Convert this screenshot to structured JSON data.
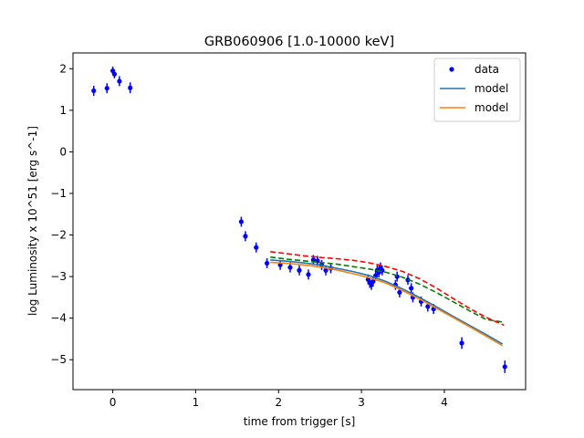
{
  "chart_data": {
    "type": "scatter",
    "title": "GRB060906 [1.0-10000 keV]",
    "xlabel": "time from trigger [s]",
    "ylabel": "log Luminosity x 10^51 [erg s^-1]",
    "xlim": [
      -0.48,
      4.98
    ],
    "ylim": [
      -5.72,
      2.38
    ],
    "xticks": [
      0,
      1,
      2,
      3,
      4
    ],
    "yticks": [
      -5,
      -4,
      -3,
      -2,
      -1,
      0,
      1,
      2
    ],
    "grid": false,
    "legend_position": "top-right",
    "series": [
      {
        "name": "data",
        "kind": "errorbar",
        "color": "#0000ff",
        "points": [
          {
            "x": -0.23,
            "y": 1.47,
            "err": 0.12
          },
          {
            "x": -0.07,
            "y": 1.53,
            "err": 0.12
          },
          {
            "x": 0.0,
            "y": 1.95,
            "err": 0.1
          },
          {
            "x": 0.02,
            "y": 1.87,
            "err": 0.1
          },
          {
            "x": 0.08,
            "y": 1.7,
            "err": 0.12
          },
          {
            "x": 0.21,
            "y": 1.54,
            "err": 0.13
          },
          {
            "x": 1.55,
            "y": -1.68,
            "err": 0.12
          },
          {
            "x": 1.6,
            "y": -2.03,
            "err": 0.12
          },
          {
            "x": 1.73,
            "y": -2.3,
            "err": 0.12
          },
          {
            "x": 1.86,
            "y": -2.68,
            "err": 0.12
          },
          {
            "x": 2.02,
            "y": -2.72,
            "err": 0.12
          },
          {
            "x": 2.14,
            "y": -2.78,
            "err": 0.12
          },
          {
            "x": 2.25,
            "y": -2.85,
            "err": 0.12
          },
          {
            "x": 2.36,
            "y": -2.95,
            "err": 0.12
          },
          {
            "x": 2.42,
            "y": -2.6,
            "err": 0.12
          },
          {
            "x": 2.47,
            "y": -2.62,
            "err": 0.12
          },
          {
            "x": 2.52,
            "y": -2.72,
            "err": 0.12
          },
          {
            "x": 2.57,
            "y": -2.85,
            "err": 0.12
          },
          {
            "x": 2.63,
            "y": -2.8,
            "err": 0.12
          },
          {
            "x": 3.08,
            "y": -3.07,
            "err": 0.12
          },
          {
            "x": 3.1,
            "y": -3.15,
            "err": 0.12
          },
          {
            "x": 3.12,
            "y": -3.2,
            "err": 0.12
          },
          {
            "x": 3.14,
            "y": -3.12,
            "err": 0.12
          },
          {
            "x": 3.17,
            "y": -2.98,
            "err": 0.12
          },
          {
            "x": 3.19,
            "y": -2.85,
            "err": 0.12
          },
          {
            "x": 3.21,
            "y": -2.9,
            "err": 0.12
          },
          {
            "x": 3.23,
            "y": -2.78,
            "err": 0.12
          },
          {
            "x": 3.25,
            "y": -2.85,
            "err": 0.12
          },
          {
            "x": 3.41,
            "y": -3.2,
            "err": 0.12
          },
          {
            "x": 3.43,
            "y": -3.0,
            "err": 0.12
          },
          {
            "x": 3.46,
            "y": -3.38,
            "err": 0.12
          },
          {
            "x": 3.56,
            "y": -3.08,
            "err": 0.12
          },
          {
            "x": 3.6,
            "y": -3.28,
            "err": 0.12
          },
          {
            "x": 3.62,
            "y": -3.5,
            "err": 0.12
          },
          {
            "x": 3.72,
            "y": -3.6,
            "err": 0.12
          },
          {
            "x": 3.8,
            "y": -3.72,
            "err": 0.12
          },
          {
            "x": 3.87,
            "y": -3.78,
            "err": 0.12
          },
          {
            "x": 4.21,
            "y": -4.6,
            "err": 0.14
          },
          {
            "x": 4.73,
            "y": -5.17,
            "err": 0.15
          }
        ]
      },
      {
        "name": "model",
        "kind": "line",
        "color": "#1f77b4",
        "x": [
          1.9,
          2.1,
          2.3,
          2.5,
          2.7,
          2.9,
          3.1,
          3.3,
          3.5,
          3.7,
          3.9,
          4.1,
          4.3,
          4.5,
          4.7
        ],
        "y": [
          -2.6,
          -2.63,
          -2.67,
          -2.72,
          -2.8,
          -2.88,
          -2.98,
          -3.12,
          -3.3,
          -3.5,
          -3.72,
          -3.95,
          -4.17,
          -4.39,
          -4.62
        ]
      },
      {
        "name": "model",
        "kind": "line",
        "color": "#ff7f0e",
        "x": [
          1.9,
          2.1,
          2.3,
          2.5,
          2.7,
          2.9,
          3.1,
          3.3,
          3.5,
          3.7,
          3.9,
          4.1,
          4.3,
          4.5,
          4.7
        ],
        "y": [
          -2.66,
          -2.68,
          -2.72,
          -2.77,
          -2.84,
          -2.93,
          -3.03,
          -3.16,
          -3.34,
          -3.54,
          -3.76,
          -3.98,
          -4.2,
          -4.43,
          -4.66
        ]
      },
      {
        "name": "",
        "kind": "dashed",
        "color": "#008000",
        "x": [
          1.9,
          2.1,
          2.3,
          2.5,
          2.7,
          2.9,
          3.1,
          3.3,
          3.5,
          3.7,
          3.9,
          4.1,
          4.3,
          4.5,
          4.72
        ],
        "y": [
          -2.53,
          -2.58,
          -2.62,
          -2.66,
          -2.7,
          -2.76,
          -2.82,
          -2.9,
          -3.02,
          -3.18,
          -3.38,
          -3.6,
          -3.82,
          -4.03,
          -4.1
        ]
      },
      {
        "name": "",
        "kind": "dashed",
        "color": "#ff0000",
        "x": [
          1.9,
          2.1,
          2.3,
          2.5,
          2.7,
          2.9,
          3.1,
          3.3,
          3.5,
          3.7,
          3.9,
          4.1,
          4.3,
          4.5,
          4.72
        ],
        "y": [
          -2.4,
          -2.45,
          -2.5,
          -2.54,
          -2.57,
          -2.61,
          -2.67,
          -2.76,
          -2.88,
          -3.05,
          -3.27,
          -3.52,
          -3.76,
          -3.98,
          -4.17
        ]
      }
    ]
  }
}
